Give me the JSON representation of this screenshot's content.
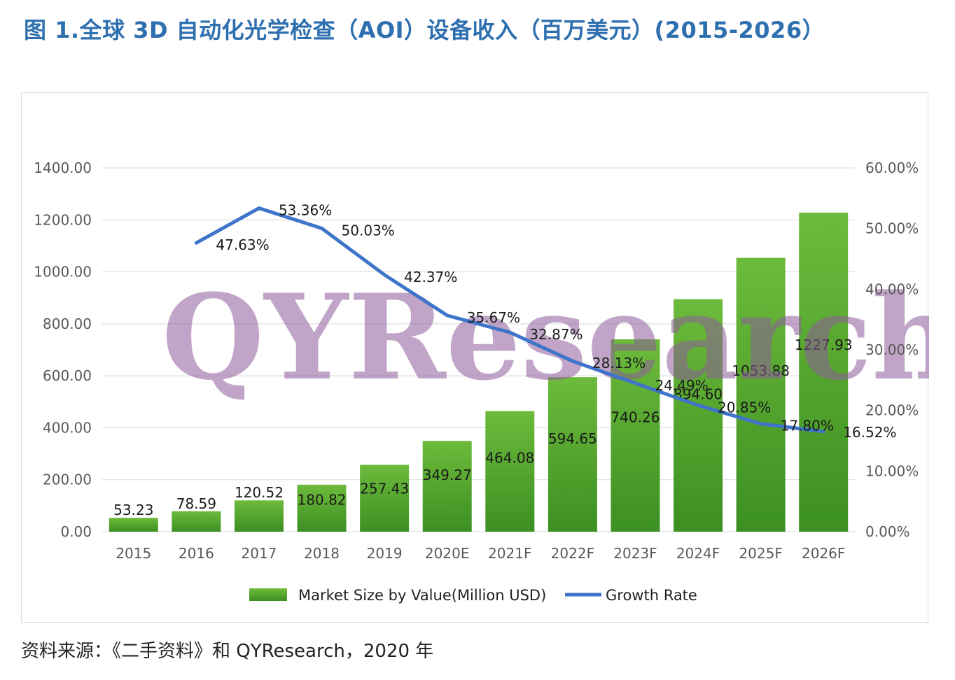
{
  "title": "图 1.全球 3D 自动化光学检查（AOI）设备收入（百万美元）(2015-2026）",
  "source": "资料来源：《二手资料》和 QYResearch，2020 年",
  "watermark": "QYResearch",
  "colors": {
    "title": "#2e6fb0",
    "bar_top": "#6dbb3c",
    "bar_bottom": "#3c8f22",
    "line": "#3e74c9",
    "grid": "#d9d9d9"
  },
  "chart_data": {
    "type": "bar",
    "categories": [
      "2015",
      "2016",
      "2017",
      "2018",
      "2019",
      "2020E",
      "2021F",
      "2022F",
      "2023F",
      "2024F",
      "2025F",
      "2026F"
    ],
    "series": [
      {
        "name": "Market Size by Value(Million USD)",
        "type": "bar",
        "axis": "left",
        "values": [
          53.23,
          78.59,
          120.52,
          180.82,
          257.43,
          349.27,
          464.08,
          594.65,
          740.26,
          894.6,
          1053.88,
          1227.93
        ],
        "labels": [
          "53.23",
          "78.59",
          "120.52",
          "180.82",
          "257.43",
          "349.27",
          "464.08",
          "594.65",
          "740.26",
          "894.60",
          "1053.88",
          "1227.93"
        ]
      },
      {
        "name": "Growth Rate",
        "type": "line",
        "axis": "right",
        "values": [
          null,
          47.63,
          53.36,
          50.03,
          42.37,
          35.67,
          32.87,
          28.13,
          24.49,
          20.85,
          17.8,
          16.52
        ],
        "labels": [
          "",
          "47.63%",
          "53.36%",
          "50.03%",
          "42.37%",
          "35.67%",
          "32.87%",
          "28.13%",
          "24.49%",
          "20.85%",
          "17.80%",
          "16.52%"
        ]
      }
    ],
    "y_left": {
      "min": 0,
      "max": 1400,
      "ticks": [
        "0.00",
        "200.00",
        "400.00",
        "600.00",
        "800.00",
        "1000.00",
        "1200.00",
        "1400.00"
      ]
    },
    "y_right": {
      "min": 0,
      "max": 60,
      "ticks": [
        "0.00%",
        "10.00%",
        "20.00%",
        "30.00%",
        "40.00%",
        "50.00%",
        "60.00%"
      ]
    },
    "grid": true,
    "legend_position": "bottom"
  }
}
